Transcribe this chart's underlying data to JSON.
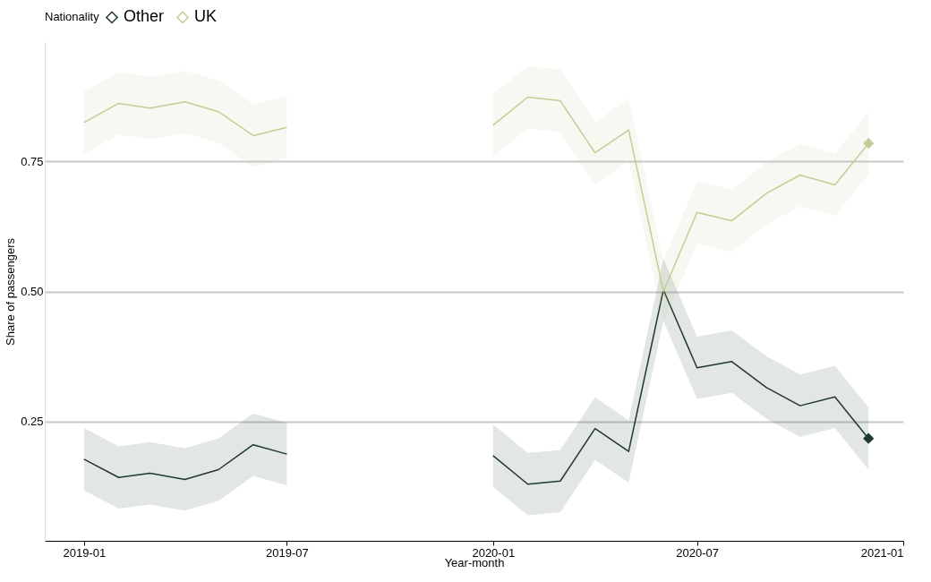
{
  "chart_data": {
    "type": "line",
    "xlabel": "Year-month",
    "ylabel": "Share of passengers",
    "legend_title": "Nationality",
    "x": [
      "2019-01",
      "2019-02",
      "2019-03",
      "2019-04",
      "2019-05",
      "2019-06",
      "2019-07",
      "2019-08",
      "2019-09",
      "2019-10",
      "2019-11",
      "2019-12",
      "2020-01",
      "2020-02",
      "2020-03",
      "2020-04",
      "2020-05",
      "2020-06",
      "2020-07",
      "2020-08",
      "2020-09",
      "2020-10",
      "2020-11",
      "2020-12"
    ],
    "series": [
      {
        "name": "Other",
        "color": "#1f3a2d",
        "values": [
          0.177,
          0.142,
          0.15,
          0.138,
          0.157,
          0.205,
          0.187,
          null,
          null,
          null,
          null,
          null,
          0.184,
          0.129,
          0.135,
          0.236,
          0.192,
          0.503,
          0.353,
          0.365,
          0.315,
          0.28,
          0.297,
          0.217
        ],
        "lower": [
          0.117,
          0.082,
          0.09,
          0.078,
          0.097,
          0.145,
          0.127,
          null,
          null,
          null,
          null,
          null,
          0.124,
          0.069,
          0.075,
          0.176,
          0.132,
          0.443,
          0.293,
          0.305,
          0.255,
          0.22,
          0.237,
          0.157
        ],
        "upper": [
          0.237,
          0.202,
          0.21,
          0.198,
          0.217,
          0.265,
          0.247,
          null,
          null,
          null,
          null,
          null,
          0.244,
          0.189,
          0.195,
          0.296,
          0.252,
          0.563,
          0.413,
          0.425,
          0.375,
          0.34,
          0.357,
          0.277
        ]
      },
      {
        "name": "UK",
        "color": "#c5cc96",
        "values": [
          0.825,
          0.862,
          0.853,
          0.865,
          0.846,
          0.8,
          0.816,
          null,
          null,
          null,
          null,
          null,
          0.82,
          0.874,
          0.867,
          0.767,
          0.811,
          0.5,
          0.652,
          0.636,
          0.689,
          0.724,
          0.705,
          0.785
        ],
        "lower": [
          0.765,
          0.802,
          0.793,
          0.805,
          0.786,
          0.74,
          0.756,
          null,
          null,
          null,
          null,
          null,
          0.76,
          0.814,
          0.807,
          0.707,
          0.751,
          0.44,
          0.592,
          0.576,
          0.629,
          0.664,
          0.645,
          0.725
        ],
        "upper": [
          0.885,
          0.922,
          0.913,
          0.925,
          0.906,
          0.86,
          0.876,
          null,
          null,
          null,
          null,
          null,
          0.88,
          0.934,
          0.927,
          0.827,
          0.871,
          0.56,
          0.712,
          0.696,
          0.749,
          0.784,
          0.765,
          0.845
        ]
      },
      {
        "type": "scatter",
        "color": "#1f3a2d",
        "marker": "diamond",
        "values": [
          null,
          null,
          null,
          null,
          null,
          null,
          null,
          null,
          null,
          null,
          null,
          null,
          null,
          null,
          null,
          null,
          null,
          null,
          null,
          null,
          null,
          null,
          null,
          0.217
        ]
      },
      {
        "type": "scatter",
        "color": "#c5cc96",
        "marker": "diamond",
        "values": [
          null,
          null,
          null,
          null,
          null,
          null,
          null,
          null,
          null,
          null,
          null,
          null,
          null,
          null,
          null,
          null,
          null,
          null,
          null,
          null,
          null,
          null,
          null,
          0.785
        ]
      }
    ],
    "xlim": [
      "2018-11-27",
      "2021-01-01"
    ],
    "xticks": [
      "2019-01",
      "2019-07",
      "2020-01",
      "2020-07",
      "2021-01"
    ],
    "ylim": [
      0.02,
      0.98
    ],
    "yticks": [
      0.25,
      {
        "value": 0.5,
        "label": "0.50"
      },
      0.75
    ],
    "grid": "y",
    "legend": "top"
  }
}
